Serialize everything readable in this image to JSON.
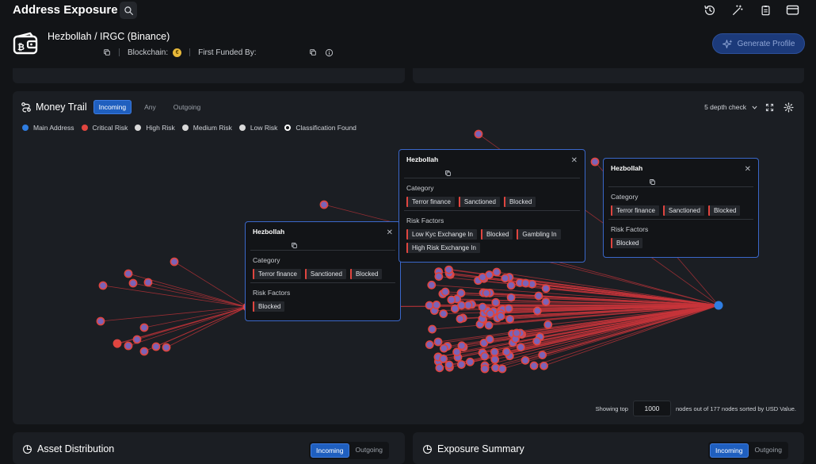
{
  "app": {
    "title": "Address Exposure"
  },
  "entity": {
    "name": "Hezbollah / IRGC (Binance)",
    "blockchain_label": "Blockchain:",
    "first_funded_label": "First Funded By:",
    "generate_label": "Generate Profile"
  },
  "money_trail": {
    "title": "Money Trail",
    "tabs": [
      "Incoming",
      "Any",
      "Outgoing"
    ],
    "active_tab": "Incoming",
    "depth_label": "5 depth check",
    "legend": [
      {
        "label": "Main Address",
        "color": "#2f7de1"
      },
      {
        "label": "Critical Risk",
        "color": "#e0453f"
      },
      {
        "label": "High Risk",
        "color": "#d9d9d9"
      },
      {
        "label": "Medium Risk",
        "color": "#d9d9d9"
      },
      {
        "label": "Low Risk",
        "color": "#d9d9d9"
      },
      {
        "label": "Classification Found",
        "color": "#ffffff"
      }
    ],
    "popups": [
      {
        "title": "Hezbollah",
        "category_label": "Category",
        "categories": [
          "Terror finance",
          "Sanctioned",
          "Blocked"
        ],
        "risk_label": "Risk Factors",
        "risks": [
          "Blocked"
        ]
      },
      {
        "title": "Hezbollah",
        "category_label": "Category",
        "categories": [
          "Terror finance",
          "Sanctioned",
          "Blocked"
        ],
        "risk_label": "Risk Factors",
        "risks": [
          "Low Kyc Exchange In",
          "Blocked",
          "Gambling In",
          "High Risk Exchange In"
        ]
      },
      {
        "title": "Hezbollah",
        "category_label": "Category",
        "categories": [
          "Terror finance",
          "Sanctioned",
          "Blocked"
        ],
        "risk_label": "Risk Factors",
        "risks": [
          "Blocked"
        ]
      }
    ],
    "showing_prefix": "Showing top",
    "top_n": "1000",
    "showing_suffix": "nodes out of 177 nodes sorted by USD Value."
  },
  "asset_distribution": {
    "title": "Asset Distribution",
    "tabs": [
      "Incoming",
      "Outgoing"
    ]
  },
  "exposure_summary": {
    "title": "Exposure Summary",
    "tabs": [
      "Incoming",
      "Outgoing"
    ]
  },
  "colors": {
    "accent": "#1f5fbf",
    "critical": "#e0453f",
    "main": "#2f7de1",
    "edge": "#c8343a"
  }
}
